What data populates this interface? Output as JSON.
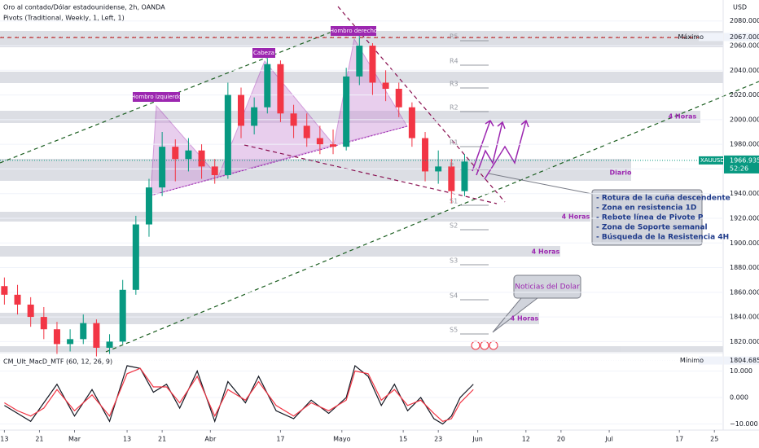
{
  "chart_data": [
    {
      "type": "candlestick",
      "title": "Oro al contado/Dólar estadounidense, 2h, OANDA",
      "subtitle": "Pivots (Traditional, Weekly, 1, Left, 1)",
      "currency": "USD",
      "up_color": "#089981",
      "down_color": "#f23645",
      "x": [
        0,
        3,
        6,
        9,
        12,
        15,
        18,
        21,
        24,
        27,
        30,
        33,
        36,
        39,
        42,
        45,
        48,
        51,
        54,
        57,
        60,
        63,
        66,
        69,
        72,
        75,
        78,
        81,
        84,
        87,
        90,
        93,
        96,
        99,
        102,
        105
      ],
      "open": [
        1865,
        1858,
        1850,
        1840,
        1830,
        1818,
        1822,
        1835,
        1815,
        1820,
        1862,
        1915,
        1945,
        1978,
        1968,
        1975,
        1962,
        1955,
        2020,
        1995,
        2010,
        2045,
        2005,
        1995,
        1985,
        1980,
        1978,
        2035,
        2060,
        2030,
        2025,
        2010,
        1985,
        1958,
        1962,
        1942
      ],
      "high": [
        1872,
        1866,
        1856,
        1848,
        1836,
        1830,
        1842,
        1838,
        1826,
        1870,
        1922,
        1952,
        1990,
        1984,
        1985,
        1980,
        1968,
        2030,
        2026,
        2018,
        2050,
        2048,
        2012,
        2005,
        1995,
        1992,
        2042,
        2068,
        2062,
        2040,
        2030,
        2014,
        1990,
        1975,
        1968,
        1972
      ],
      "low": [
        1850,
        1842,
        1832,
        1822,
        1810,
        1812,
        1818,
        1808,
        1810,
        1818,
        1858,
        1905,
        1938,
        1950,
        1958,
        1952,
        1948,
        1952,
        1985,
        1988,
        2005,
        1998,
        1985,
        1978,
        1972,
        1972,
        1975,
        2028,
        2020,
        2015,
        2002,
        1978,
        1950,
        1948,
        1932,
        1938
      ],
      "close": [
        1858,
        1850,
        1840,
        1830,
        1818,
        1822,
        1835,
        1815,
        1820,
        1862,
        1915,
        1945,
        1978,
        1968,
        1975,
        1962,
        1955,
        2020,
        1995,
        2010,
        2045,
        2005,
        1995,
        1985,
        1980,
        1978,
        2035,
        2060,
        2030,
        2025,
        2010,
        1985,
        1958,
        1962,
        1942,
        1966
      ],
      "xlim": [
        -1,
        164
      ],
      "xticks": [
        {
          "value": 0,
          "label": "13"
        },
        {
          "value": 8,
          "label": "21"
        },
        {
          "value": 16,
          "label": "Mar"
        },
        {
          "value": 28,
          "label": "13"
        },
        {
          "value": 36,
          "label": "21"
        },
        {
          "value": 47,
          "label": "Abr"
        },
        {
          "value": 63,
          "label": "17"
        },
        {
          "value": 77,
          "label": "Mayo"
        },
        {
          "value": 91,
          "label": "15"
        },
        {
          "value": 99,
          "label": "23"
        },
        {
          "value": 108,
          "label": "Jun"
        },
        {
          "value": 119,
          "label": "12"
        },
        {
          "value": 127,
          "label": "20"
        },
        {
          "value": 138,
          "label": "Jul"
        },
        {
          "value": 154,
          "label": "17"
        },
        {
          "value": 162,
          "label": "25"
        }
      ],
      "ylim": [
        1811,
        2097
      ],
      "yticks": [
        {
          "value": 1820,
          "label": "1820.000"
        },
        {
          "value": 1840,
          "label": "1840.000"
        },
        {
          "value": 1860,
          "label": "1860.000"
        },
        {
          "value": 1880,
          "label": "1880.000"
        },
        {
          "value": 1900,
          "label": "1900.000"
        },
        {
          "value": 1920,
          "label": "1920.000"
        },
        {
          "value": 1940,
          "label": "1940.000"
        },
        {
          "value": 1960,
          "label": "1960.000"
        },
        {
          "value": 1980,
          "label": "1980.000"
        },
        {
          "value": 2000,
          "label": "2000.000"
        },
        {
          "value": 2020,
          "label": "2020.000"
        },
        {
          "value": 2040,
          "label": "2040.000"
        },
        {
          "value": 2060,
          "label": "2060.000"
        },
        {
          "value": 2080,
          "label": "2080.000"
        }
      ],
      "max_text": "Máximo",
      "max_price": {
        "value": 2067,
        "label": "2067.000"
      },
      "min_text": "Mínimo",
      "min_price": {
        "value": 1804.685,
        "label": "1804.685"
      },
      "symbol": "XAUUSD",
      "last_price": {
        "value": 1966.935,
        "label": "1966.935"
      },
      "countdown": "52:26",
      "annotations": [
        "Hombro izquierdo",
        "Cabeza",
        "Hombro derecho",
        "4 Horas",
        "Diario",
        "4 Horas",
        "4 Horas",
        "4 Horas",
        "Noticias del Dolar"
      ],
      "pivot_labels": [
        "R5",
        "R4",
        "R3",
        "R2",
        "R1",
        "P",
        "S1",
        "S2",
        "S3",
        "S4",
        "S5"
      ],
      "callout": [
        "- Rotura de la cuña descendente",
        "- Zona en resistencia 1D",
        "- Rebote línea de Pivote P",
        "- Zona de Soporte semanal",
        "- Búsqueda de la Resistencia 4H"
      ]
    },
    {
      "type": "line",
      "title": "CM_Ult_MacD_MTF (60, 12, 26, 9)",
      "x": [
        0,
        3,
        6,
        9,
        12,
        16,
        20,
        24,
        28,
        31,
        34,
        37,
        40,
        44,
        48,
        51,
        55,
        58,
        62,
        66,
        70,
        74,
        78,
        80,
        83,
        86,
        89,
        92,
        95,
        98,
        100,
        102,
        104,
        107
      ],
      "series": [
        {
          "color": "#131722",
          "values": [
            -3,
            -6,
            -9,
            -2,
            5,
            -7,
            3,
            -9,
            12,
            11,
            2,
            5,
            -4,
            10,
            -9,
            6,
            -2,
            8,
            -5,
            -8,
            -1,
            -6,
            0,
            12,
            8,
            -3,
            5,
            -5,
            0,
            -8,
            -10,
            -7,
            0,
            5
          ]
        },
        {
          "color": "#f23645",
          "values": [
            -2,
            -5,
            -7,
            -4,
            3,
            -5,
            1,
            -7,
            9,
            11,
            4,
            4,
            -2,
            8,
            -7,
            3,
            -1,
            6,
            -3,
            -7,
            -2,
            -5,
            -1,
            10,
            9,
            -1,
            3,
            -3,
            -1,
            -6,
            -9,
            -8,
            -2,
            3
          ]
        }
      ],
      "ylim": [
        -12.3,
        16
      ],
      "yticks": [
        {
          "value": 10,
          "label": "10.000"
        },
        {
          "value": 0,
          "label": "0.000"
        },
        {
          "value": -10,
          "label": "−10.000"
        }
      ]
    }
  ]
}
